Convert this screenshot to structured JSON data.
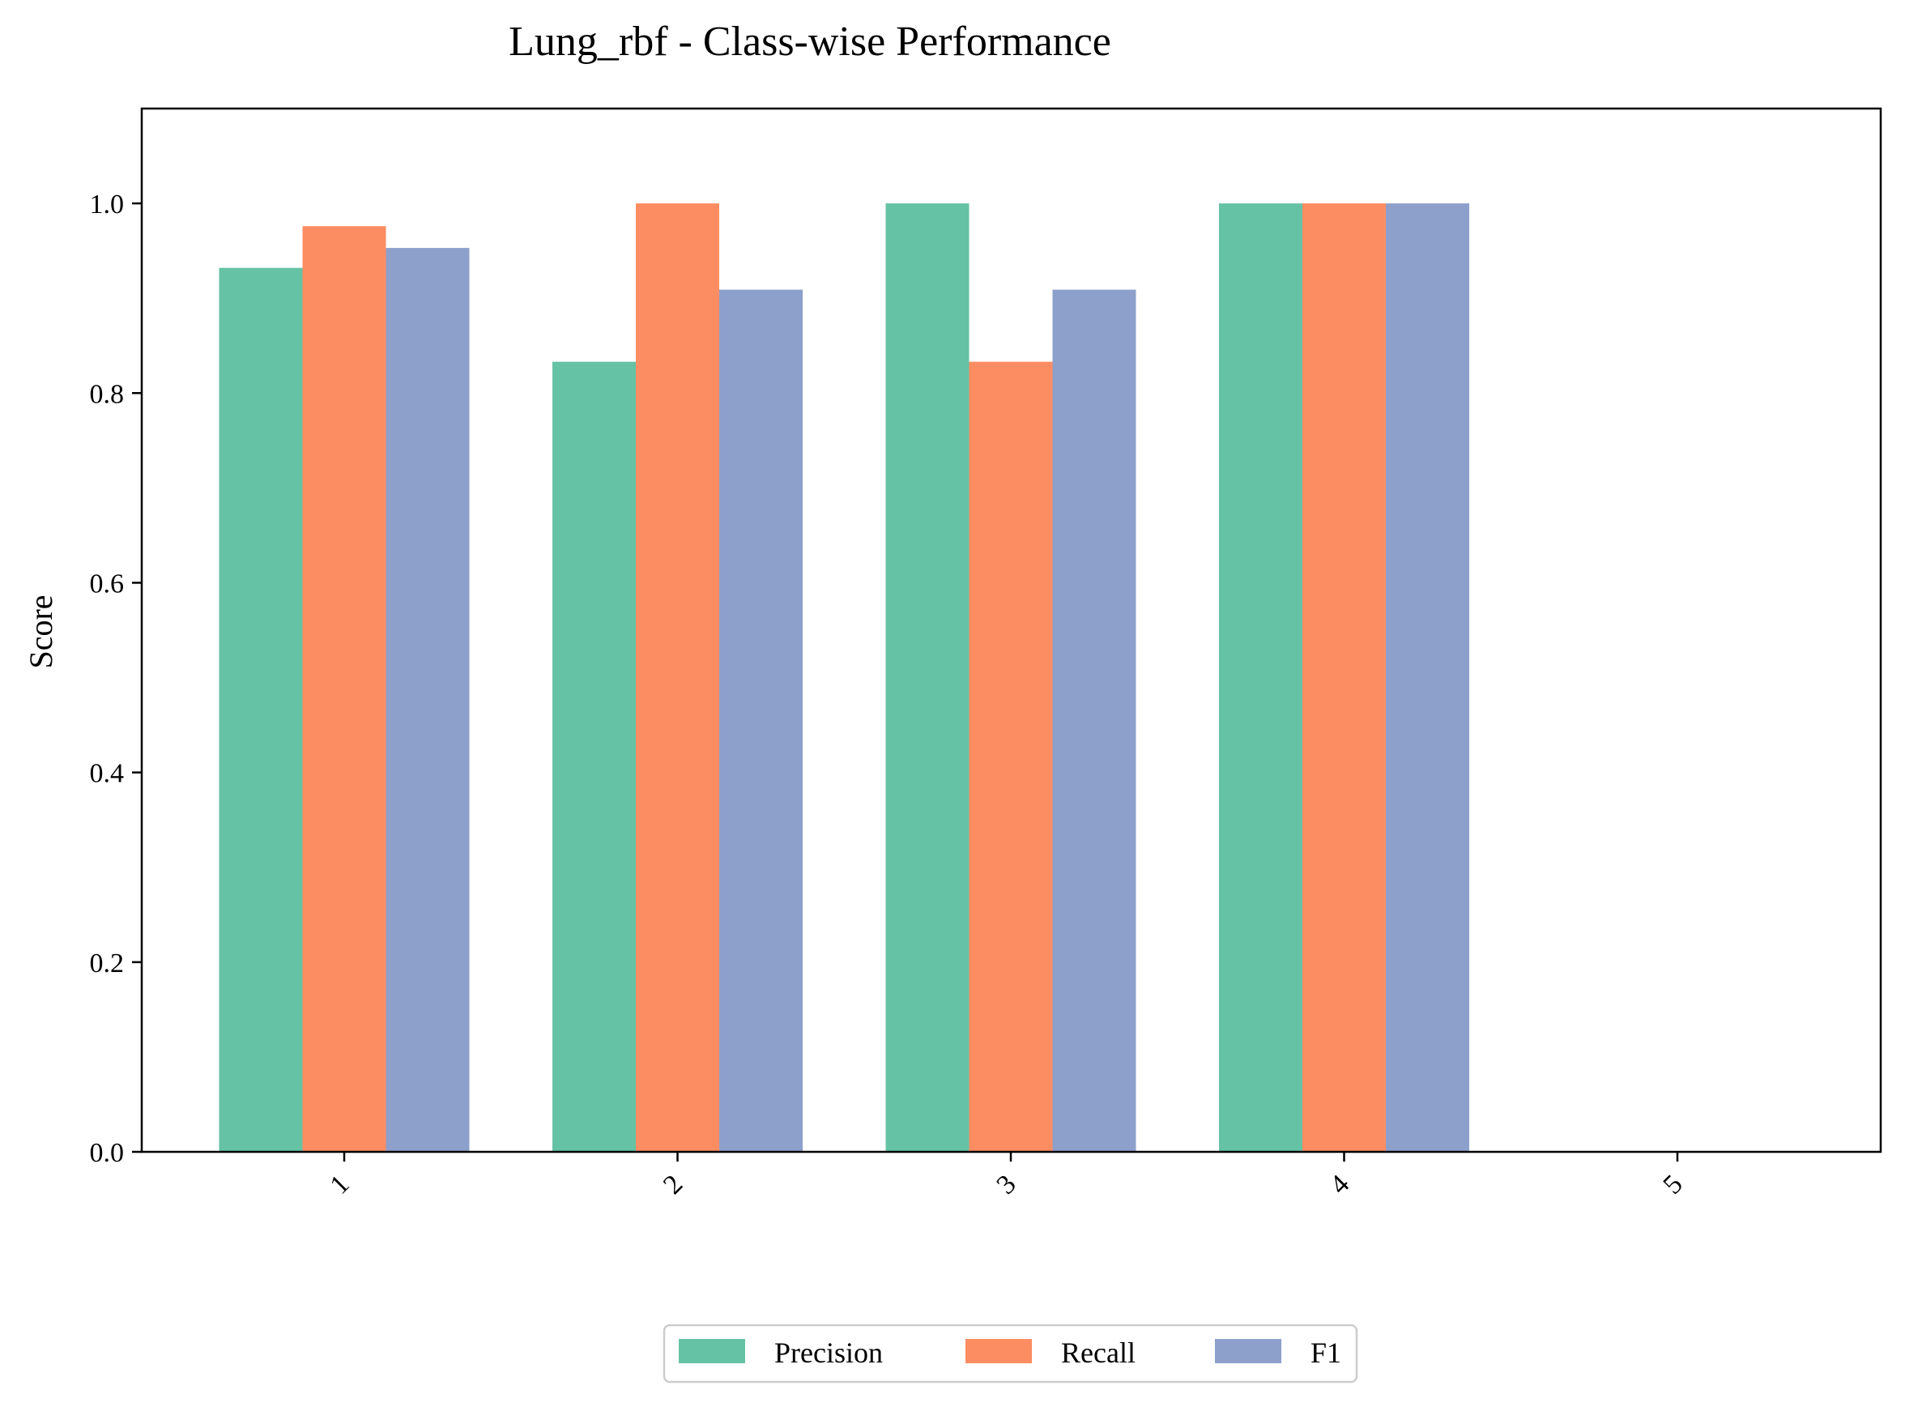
{
  "chart_data": {
    "type": "bar",
    "title": "Lung_rbf - Class-wise Performance",
    "xlabel": "",
    "ylabel": "Score",
    "ylim": [
      0,
      1.1
    ],
    "yticks": [
      "0.0",
      "0.2",
      "0.4",
      "0.6",
      "0.8",
      "1.0"
    ],
    "categories": [
      "1",
      "2",
      "3",
      "4",
      "5"
    ],
    "series": [
      {
        "name": "Precision",
        "color": "#66c2a5",
        "values": [
          0.932,
          0.833,
          1.0,
          1.0,
          0.0
        ]
      },
      {
        "name": "Recall",
        "color": "#fc8d62",
        "values": [
          0.976,
          1.0,
          0.833,
          1.0,
          0.0
        ]
      },
      {
        "name": "F1",
        "color": "#8da0cb",
        "values": [
          0.953,
          0.909,
          0.909,
          1.0,
          0.0
        ]
      }
    ],
    "grid": false,
    "legend_position": "bottom-center"
  }
}
